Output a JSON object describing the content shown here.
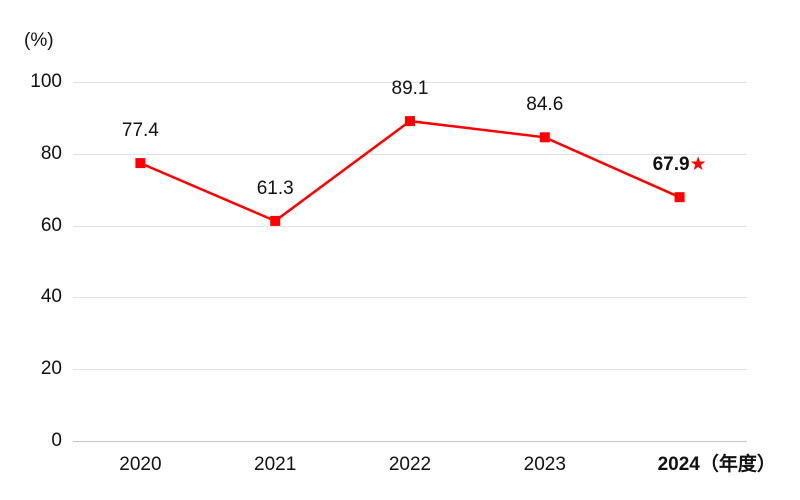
{
  "chart_data": {
    "type": "line",
    "title": "",
    "y_axis_unit_label": "(%)",
    "x_axis_unit_suffix": "（年度）",
    "categories": [
      "2020",
      "2021",
      "2022",
      "2023",
      "2024"
    ],
    "values": [
      77.4,
      61.3,
      89.1,
      84.6,
      67.9
    ],
    "point_labels": [
      "77.4",
      "61.3",
      "89.1",
      "84.6",
      "67.9"
    ],
    "ylim": [
      0,
      100
    ],
    "y_ticks": [
      0,
      20,
      40,
      60,
      80,
      100
    ],
    "grid": "horizontal",
    "legend": "none",
    "line_color": "#ff0000",
    "marker_shape": "square",
    "grid_color": "#e2e2e2",
    "baseline_color": "#c4c4c4",
    "text_color": "#111111",
    "highlight": {
      "index": 4,
      "bold": true,
      "star": "★",
      "star_color": "#ff0000"
    }
  }
}
